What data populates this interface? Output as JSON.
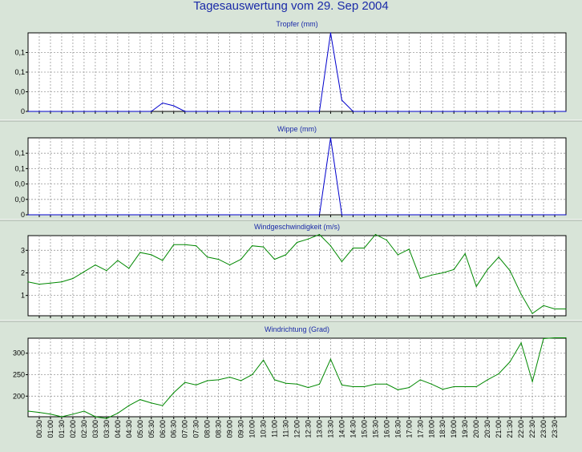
{
  "title": "Tagesauswertung vom 29. Sep 2004",
  "colors": {
    "background": "#d8e4d8",
    "plot_bg": "#ffffff",
    "grid": "#9a9a9a",
    "rain_line": "#0000cc",
    "wind_line": "#008800",
    "title": "#1a2aa8"
  },
  "chart_data": [
    {
      "type": "line",
      "title": "Tropfer (mm)",
      "x": [
        "00:00",
        "00:30",
        "01:00",
        "01:30",
        "02:00",
        "02:30",
        "03:00",
        "03:30",
        "04:00",
        "04:30",
        "05:00",
        "05:30",
        "06:00",
        "06:30",
        "07:00",
        "07:30",
        "08:00",
        "08:30",
        "09:00",
        "09:30",
        "10:00",
        "10:30",
        "11:00",
        "11:30",
        "12:00",
        "12:30",
        "13:00",
        "13:30",
        "14:00",
        "14:30",
        "15:00",
        "15:30",
        "16:00",
        "16:30",
        "17:00",
        "17:30",
        "18:00",
        "18:30",
        "19:00",
        "19:30",
        "20:00",
        "20:30",
        "21:00",
        "21:30",
        "22:00",
        "22:30",
        "23:00",
        "23:30",
        "24:00"
      ],
      "y": [
        0,
        0,
        0,
        0,
        0,
        0,
        0,
        0,
        0,
        0,
        0,
        0,
        0.015,
        0.01,
        0,
        0,
        0,
        0,
        0,
        0,
        0,
        0,
        0,
        0,
        0,
        0,
        0,
        0.14,
        0.02,
        0,
        0,
        0,
        0,
        0,
        0,
        0,
        0,
        0,
        0,
        0,
        0,
        0,
        0,
        0,
        0,
        0,
        0,
        0,
        0
      ],
      "ylim": [
        0,
        0.14
      ],
      "yticks": [
        0,
        0.035,
        0.07,
        0.105
      ],
      "ytick_labels": [
        "0",
        "0,0",
        "0,1",
        "0,1"
      ],
      "grid": true
    },
    {
      "type": "line",
      "title": "Wippe (mm)",
      "x": [
        "00:00",
        "00:30",
        "01:00",
        "01:30",
        "02:00",
        "02:30",
        "03:00",
        "03:30",
        "04:00",
        "04:30",
        "05:00",
        "05:30",
        "06:00",
        "06:30",
        "07:00",
        "07:30",
        "08:00",
        "08:30",
        "09:00",
        "09:30",
        "10:00",
        "10:30",
        "11:00",
        "11:30",
        "12:00",
        "12:30",
        "13:00",
        "13:30",
        "14:00",
        "14:30",
        "15:00",
        "15:30",
        "16:00",
        "16:30",
        "17:00",
        "17:30",
        "18:00",
        "18:30",
        "19:00",
        "19:30",
        "20:00",
        "20:30",
        "21:00",
        "21:30",
        "22:00",
        "22:30",
        "23:00",
        "23:30",
        "24:00"
      ],
      "y": [
        0,
        0,
        0,
        0,
        0,
        0,
        0,
        0,
        0,
        0,
        0,
        0,
        0,
        0,
        0,
        0,
        0,
        0,
        0,
        0,
        0,
        0,
        0,
        0,
        0,
        0,
        0,
        0.14,
        0,
        0,
        0,
        0,
        0,
        0,
        0,
        0,
        0,
        0,
        0,
        0,
        0,
        0,
        0,
        0,
        0,
        0,
        0,
        0,
        0
      ],
      "ylim": [
        0,
        0.14
      ],
      "yticks": [
        0,
        0.028,
        0.056,
        0.084,
        0.112
      ],
      "ytick_labels": [
        "0",
        "0,0",
        "0,0",
        "0,1",
        "0,1"
      ],
      "grid": true
    },
    {
      "type": "line",
      "title": "Windgeschwindigkeit (m/s)",
      "x": [
        "00:00",
        "00:30",
        "01:00",
        "01:30",
        "02:00",
        "02:30",
        "03:00",
        "03:30",
        "04:00",
        "04:30",
        "05:00",
        "05:30",
        "06:00",
        "06:30",
        "07:00",
        "07:30",
        "08:00",
        "08:30",
        "09:00",
        "09:30",
        "10:00",
        "10:30",
        "11:00",
        "11:30",
        "12:00",
        "12:30",
        "13:00",
        "13:30",
        "14:00",
        "14:30",
        "15:00",
        "15:30",
        "16:00",
        "16:30",
        "17:00",
        "17:30",
        "18:00",
        "18:30",
        "19:00",
        "19:30",
        "20:00",
        "20:30",
        "21:00",
        "21:30",
        "22:00",
        "22:30",
        "23:00",
        "23:30",
        "24:00"
      ],
      "y": [
        1.6,
        1.5,
        1.55,
        1.6,
        1.75,
        2.05,
        2.35,
        2.1,
        2.55,
        2.2,
        2.9,
        2.8,
        2.55,
        3.25,
        3.25,
        3.2,
        2.7,
        2.6,
        2.35,
        2.6,
        3.2,
        3.15,
        2.6,
        2.8,
        3.35,
        3.5,
        3.7,
        3.2,
        2.5,
        3.1,
        3.1,
        3.7,
        3.45,
        2.8,
        3.05,
        1.75,
        1.9,
        2.0,
        2.15,
        2.85,
        1.4,
        2.15,
        2.7,
        2.1,
        1.05,
        0.2,
        0.55,
        0.4,
        0.4
      ],
      "ylim": [
        0.1,
        3.65
      ],
      "yticks": [
        1,
        2,
        3
      ],
      "ytick_labels": [
        "1",
        "2",
        "3"
      ],
      "grid": true
    },
    {
      "type": "line",
      "title": "Windrichtung (Grad)",
      "x": [
        "00:00",
        "00:30",
        "01:00",
        "01:30",
        "02:00",
        "02:30",
        "03:00",
        "03:30",
        "04:00",
        "04:30",
        "05:00",
        "05:30",
        "06:00",
        "06:30",
        "07:00",
        "07:30",
        "08:00",
        "08:30",
        "09:00",
        "09:30",
        "10:00",
        "10:30",
        "11:00",
        "11:30",
        "12:00",
        "12:30",
        "13:00",
        "13:30",
        "14:00",
        "14:30",
        "15:00",
        "15:30",
        "16:00",
        "16:30",
        "17:00",
        "17:30",
        "18:00",
        "18:30",
        "19:00",
        "19:30",
        "20:00",
        "20:30",
        "21:00",
        "21:30",
        "22:00",
        "22:30",
        "23:00",
        "23:30",
        "24:00"
      ],
      "y": [
        165,
        162,
        158,
        152,
        158,
        165,
        152,
        148,
        160,
        178,
        192,
        184,
        178,
        208,
        232,
        226,
        236,
        238,
        244,
        236,
        250,
        284,
        238,
        230,
        228,
        220,
        228,
        286,
        226,
        222,
        222,
        228,
        228,
        215,
        220,
        238,
        228,
        216,
        222,
        222,
        222,
        238,
        252,
        280,
        324,
        234,
        334,
        336,
        336
      ],
      "ylim": [
        152,
        335
      ],
      "yticks": [
        200,
        250,
        300
      ],
      "ytick_labels": [
        "200",
        "250",
        "300"
      ],
      "grid": true
    }
  ],
  "x_tick_labels": [
    "00:30",
    "01:00",
    "01:30",
    "02:00",
    "02:30",
    "03:00",
    "03:30",
    "04:00",
    "04:30",
    "05:00",
    "05:30",
    "06:00",
    "06:30",
    "07:00",
    "07:30",
    "08:00",
    "08:30",
    "09:00",
    "09:30",
    "10:00",
    "10:30",
    "11:00",
    "11:30",
    "12:00",
    "12:30",
    "13:00",
    "13:30",
    "14:00",
    "14:30",
    "15:00",
    "15:30",
    "16:00",
    "16:30",
    "17:00",
    "17:30",
    "18:00",
    "18:30",
    "19:00",
    "19:30",
    "20:00",
    "20:30",
    "21:00",
    "21:30",
    "22:00",
    "22:30",
    "23:00",
    "23:30"
  ]
}
